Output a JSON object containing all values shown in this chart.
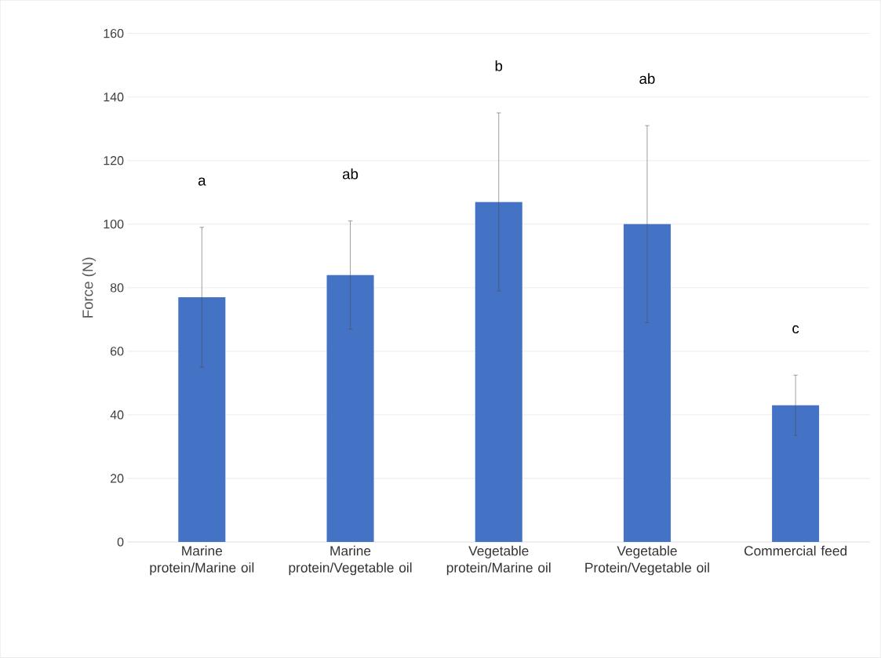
{
  "chart_data": {
    "type": "bar",
    "ylabel": "Force (N)",
    "categories": [
      "Marine protein/Marine oil",
      "Marine protein/Vegetable oil",
      "Vegetable protein/Marine oil",
      "Vegetable Protein/Vegetable oil",
      "Commercial feed"
    ],
    "values": [
      77,
      84,
      107,
      100,
      43
    ],
    "errors": [
      22,
      17,
      28,
      31,
      9.5
    ],
    "color": "#4472c4",
    "ylim": [
      0,
      160
    ],
    "yticks": [
      0,
      20,
      40,
      60,
      80,
      100,
      120,
      140,
      160
    ],
    "grid": "y",
    "annotations": [
      "a",
      "ab",
      "b",
      "ab",
      "c"
    ]
  }
}
